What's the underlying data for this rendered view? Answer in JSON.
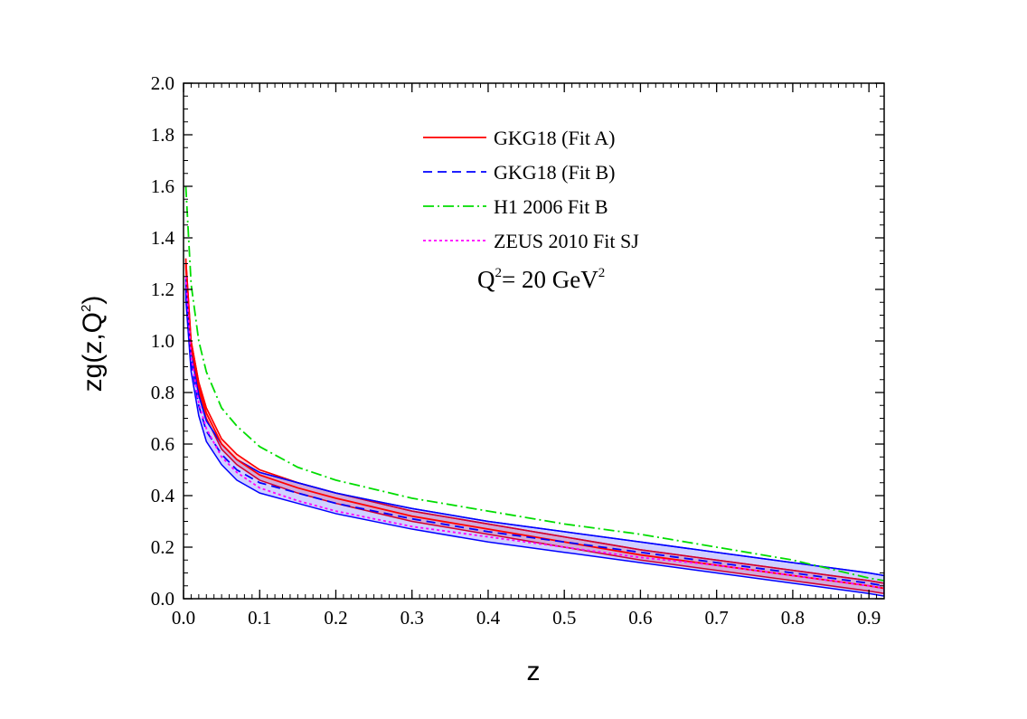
{
  "chart_data": {
    "type": "line",
    "xlabel": "z",
    "ylabel_main": "zg(z,Q",
    "ylabel_sup": "2",
    "ylabel_close": ")",
    "xlim": [
      0.0,
      0.92
    ],
    "ylim": [
      0.0,
      2.0
    ],
    "x_ticks": [
      "0.0",
      "0.1",
      "0.2",
      "0.3",
      "0.4",
      "0.5",
      "0.6",
      "0.7",
      "0.8",
      "0.9"
    ],
    "y_ticks": [
      "0.0",
      "0.2",
      "0.4",
      "0.6",
      "0.8",
      "1.0",
      "1.2",
      "1.4",
      "1.6",
      "1.8",
      "2.0"
    ],
    "annotation": {
      "q_label": "Q",
      "q_sup": "2",
      "value_label": "= 20 GeV",
      "value_sup": "2"
    },
    "legend_position": "top-center",
    "series": [
      {
        "name": "GKG18 (Fit A)",
        "color": "#ff0000",
        "style": "solid",
        "x": [
          0.003,
          0.01,
          0.02,
          0.03,
          0.05,
          0.07,
          0.1,
          0.15,
          0.2,
          0.3,
          0.4,
          0.5,
          0.6,
          0.7,
          0.8,
          0.9,
          0.92
        ],
        "y": [
          1.3,
          0.98,
          0.82,
          0.72,
          0.6,
          0.54,
          0.48,
          0.43,
          0.39,
          0.32,
          0.27,
          0.22,
          0.17,
          0.13,
          0.09,
          0.05,
          0.04
        ],
        "band": 0.02
      },
      {
        "name": "GKG18 (Fit B)",
        "color": "#0000ff",
        "style": "dashed",
        "x": [
          0.003,
          0.01,
          0.02,
          0.03,
          0.05,
          0.07,
          0.1,
          0.15,
          0.2,
          0.3,
          0.4,
          0.5,
          0.6,
          0.7,
          0.8,
          0.9,
          0.92
        ],
        "y": [
          1.2,
          0.92,
          0.75,
          0.65,
          0.56,
          0.5,
          0.45,
          0.41,
          0.37,
          0.31,
          0.26,
          0.22,
          0.18,
          0.14,
          0.1,
          0.06,
          0.05
        ],
        "band": 0.04
      },
      {
        "name": "H1 2006 Fit B",
        "color": "#00dd00",
        "style": "dashdot",
        "x": [
          0.003,
          0.01,
          0.02,
          0.03,
          0.05,
          0.07,
          0.1,
          0.15,
          0.2,
          0.3,
          0.4,
          0.5,
          0.6,
          0.7,
          0.8,
          0.9,
          0.92
        ],
        "y": [
          1.6,
          1.22,
          1.0,
          0.88,
          0.74,
          0.67,
          0.59,
          0.51,
          0.46,
          0.39,
          0.34,
          0.29,
          0.25,
          0.2,
          0.15,
          0.08,
          0.07
        ]
      },
      {
        "name": "ZEUS 2010 Fit SJ",
        "color": "#ff00ff",
        "style": "dotted",
        "x": [
          0.003,
          0.01,
          0.02,
          0.03,
          0.05,
          0.07,
          0.1,
          0.15,
          0.2,
          0.3,
          0.4,
          0.5,
          0.6,
          0.7,
          0.8,
          0.9,
          0.92
        ],
        "y": [
          1.25,
          0.94,
          0.76,
          0.66,
          0.55,
          0.49,
          0.43,
          0.38,
          0.34,
          0.28,
          0.24,
          0.2,
          0.16,
          0.13,
          0.09,
          0.05,
          0.04
        ]
      }
    ]
  }
}
